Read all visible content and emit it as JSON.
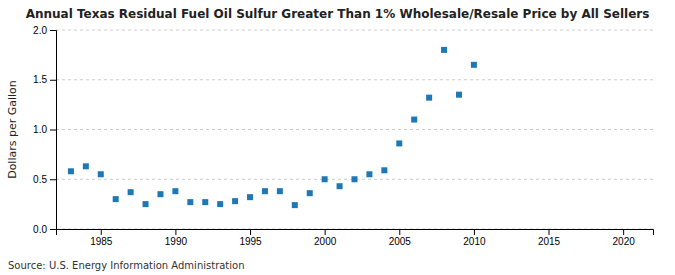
{
  "chart_data": {
    "type": "scatter",
    "title": "Annual Texas Residual Fuel Oil Sulfur Greater Than 1% Wholesale/Resale Price by All Sellers",
    "ylabel": "Dollars per Gallon",
    "source": "Source: U.S. Energy Information Administration",
    "marker": "square",
    "grid": true,
    "xlim": [
      1982,
      2022
    ],
    "ylim": [
      0.0,
      2.0
    ],
    "xticks": [
      1985,
      1990,
      1995,
      2000,
      2005,
      2010,
      2015,
      2020
    ],
    "yticks": [
      {
        "value": 0.0,
        "label": "0.0"
      },
      0.5,
      {
        "value": 1.0,
        "label": "1.0"
      },
      1.5,
      {
        "value": 2.0,
        "label": "2.0"
      }
    ],
    "x": [
      1983,
      1984,
      1985,
      1986,
      1987,
      1988,
      1989,
      1990,
      1991,
      1992,
      1993,
      1994,
      1995,
      1996,
      1997,
      1998,
      1999,
      2000,
      2001,
      2002,
      2003,
      2004,
      2005,
      2006,
      2007,
      2008,
      2009,
      2010
    ],
    "values": [
      0.58,
      0.63,
      0.55,
      0.3,
      0.37,
      0.25,
      0.35,
      0.38,
      0.27,
      0.27,
      0.25,
      0.28,
      0.32,
      0.38,
      0.38,
      0.24,
      0.36,
      0.5,
      0.43,
      0.5,
      0.55,
      0.59,
      0.86,
      1.1,
      1.32,
      1.8,
      1.35,
      1.65
    ]
  }
}
